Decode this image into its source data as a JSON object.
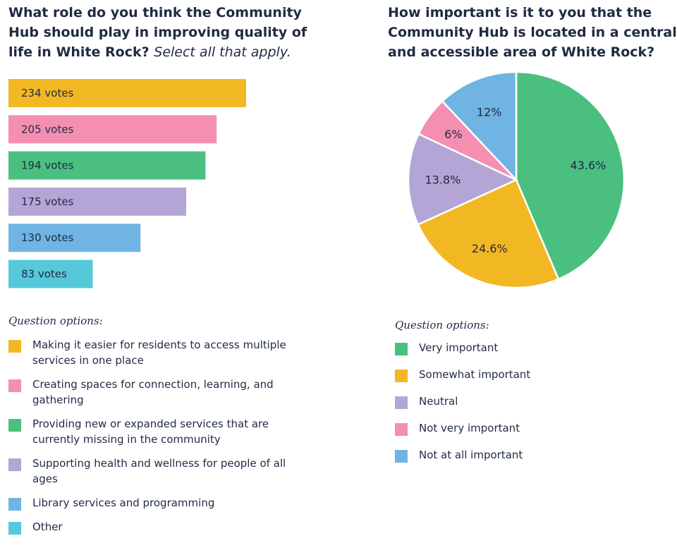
{
  "left": {
    "title": "What role do you think the Community Hub should play in improving quality of life in White Rock?",
    "title_note": "Select all that apply.",
    "legend_heading": "Question options:"
  },
  "right": {
    "title": "How important is it to you that the Community Hub is located in a central and accessible area of White Rock?",
    "legend_heading": "Question options:"
  },
  "chart_data": [
    {
      "type": "bar",
      "orientation": "horizontal",
      "categories": [
        "Making it easier for residents to access multiple services in one place",
        "Creating spaces for connection, learning, and gathering",
        "Providing new or expanded services that are currently missing in the community",
        "Supporting health and wellness for people of all ages",
        "Library services and programming",
        "Other"
      ],
      "values": [
        234,
        205,
        194,
        175,
        130,
        83
      ],
      "data_labels": [
        "234 votes",
        "205 votes",
        "194 votes",
        "175 votes",
        "130 votes",
        "83 votes"
      ],
      "colors": [
        "#f2b824",
        "#f48fb1",
        "#4bbf7f",
        "#b3a6d6",
        "#6fb4e3",
        "#55c9d9"
      ],
      "legend_placement": "bottom",
      "grid": false
    },
    {
      "type": "pie",
      "categories": [
        "Very important",
        "Somewhat important",
        "Neutral",
        "Not very important",
        "Not at all important"
      ],
      "values": [
        43.6,
        24.6,
        13.8,
        6,
        12
      ],
      "data_labels": [
        "43.6%",
        "24.6%",
        "13.8%",
        "6%",
        "12%"
      ],
      "colors": [
        "#4bbf7f",
        "#f2b824",
        "#b3a6d6",
        "#f48fb1",
        "#6fb4e3"
      ],
      "legend_placement": "bottom"
    }
  ]
}
